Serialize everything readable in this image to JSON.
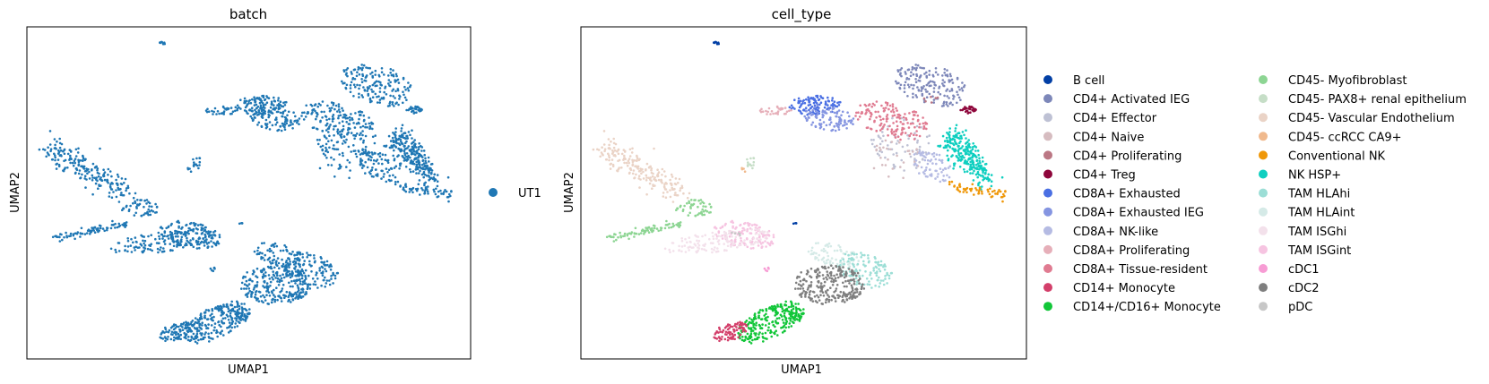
{
  "chart_data": [
    {
      "type": "scatter",
      "title": "batch",
      "xlabel": "UMAP1",
      "ylabel": "UMAP2",
      "xticks": [],
      "yticks": [],
      "legend_position": "right",
      "legend": [
        {
          "name": "UT1",
          "color": "#1f77b4"
        }
      ]
    },
    {
      "type": "scatter",
      "title": "cell_type",
      "xlabel": "UMAP1",
      "ylabel": "UMAP2",
      "xticks": [],
      "yticks": [],
      "legend_position": "right",
      "legend": [
        {
          "name": "B cell",
          "color": "#023fa5"
        },
        {
          "name": "CD4+ Activated IEG",
          "color": "#7d87b9"
        },
        {
          "name": "CD4+ Effector",
          "color": "#bec1d4"
        },
        {
          "name": "CD4+ Naive",
          "color": "#d6bcc0"
        },
        {
          "name": "CD4+ Proliferating",
          "color": "#bb7784"
        },
        {
          "name": "CD4+ Treg",
          "color": "#8e063b"
        },
        {
          "name": "CD8A+ Exhausted",
          "color": "#4a6fe3"
        },
        {
          "name": "CD8A+ Exhausted IEG",
          "color": "#8595e1"
        },
        {
          "name": "CD8A+ NK-like",
          "color": "#b5bbe3"
        },
        {
          "name": "CD8A+ Proliferating",
          "color": "#e6afb9"
        },
        {
          "name": "CD8A+ Tissue-resident",
          "color": "#e07b91"
        },
        {
          "name": "CD14+ Monocyte",
          "color": "#d33f6a"
        },
        {
          "name": "CD14+/CD16+ Monocyte",
          "color": "#11c638"
        },
        {
          "name": "CD45- Myofibroblast",
          "color": "#8dd593"
        },
        {
          "name": "CD45- PAX8+ renal epithelium",
          "color": "#c6dec7"
        },
        {
          "name": "CD45- Vascular Endothelium",
          "color": "#ead3c6"
        },
        {
          "name": "CD45- ccRCC CA9+",
          "color": "#f0b98d"
        },
        {
          "name": "Conventional NK",
          "color": "#ef9708"
        },
        {
          "name": "NK HSP+",
          "color": "#0fcfc0"
        },
        {
          "name": "TAM HLAhi",
          "color": "#9cded6"
        },
        {
          "name": "TAM HLAint",
          "color": "#d5eae7"
        },
        {
          "name": "TAM ISGhi",
          "color": "#f3e1eb"
        },
        {
          "name": "TAM ISGint",
          "color": "#f6c4e1"
        },
        {
          "name": "cDC1",
          "color": "#f79cd4"
        },
        {
          "name": "cDC2",
          "color": "#7f7f7f"
        },
        {
          "name": "pDC",
          "color": "#c7c7c7"
        }
      ]
    }
  ]
}
